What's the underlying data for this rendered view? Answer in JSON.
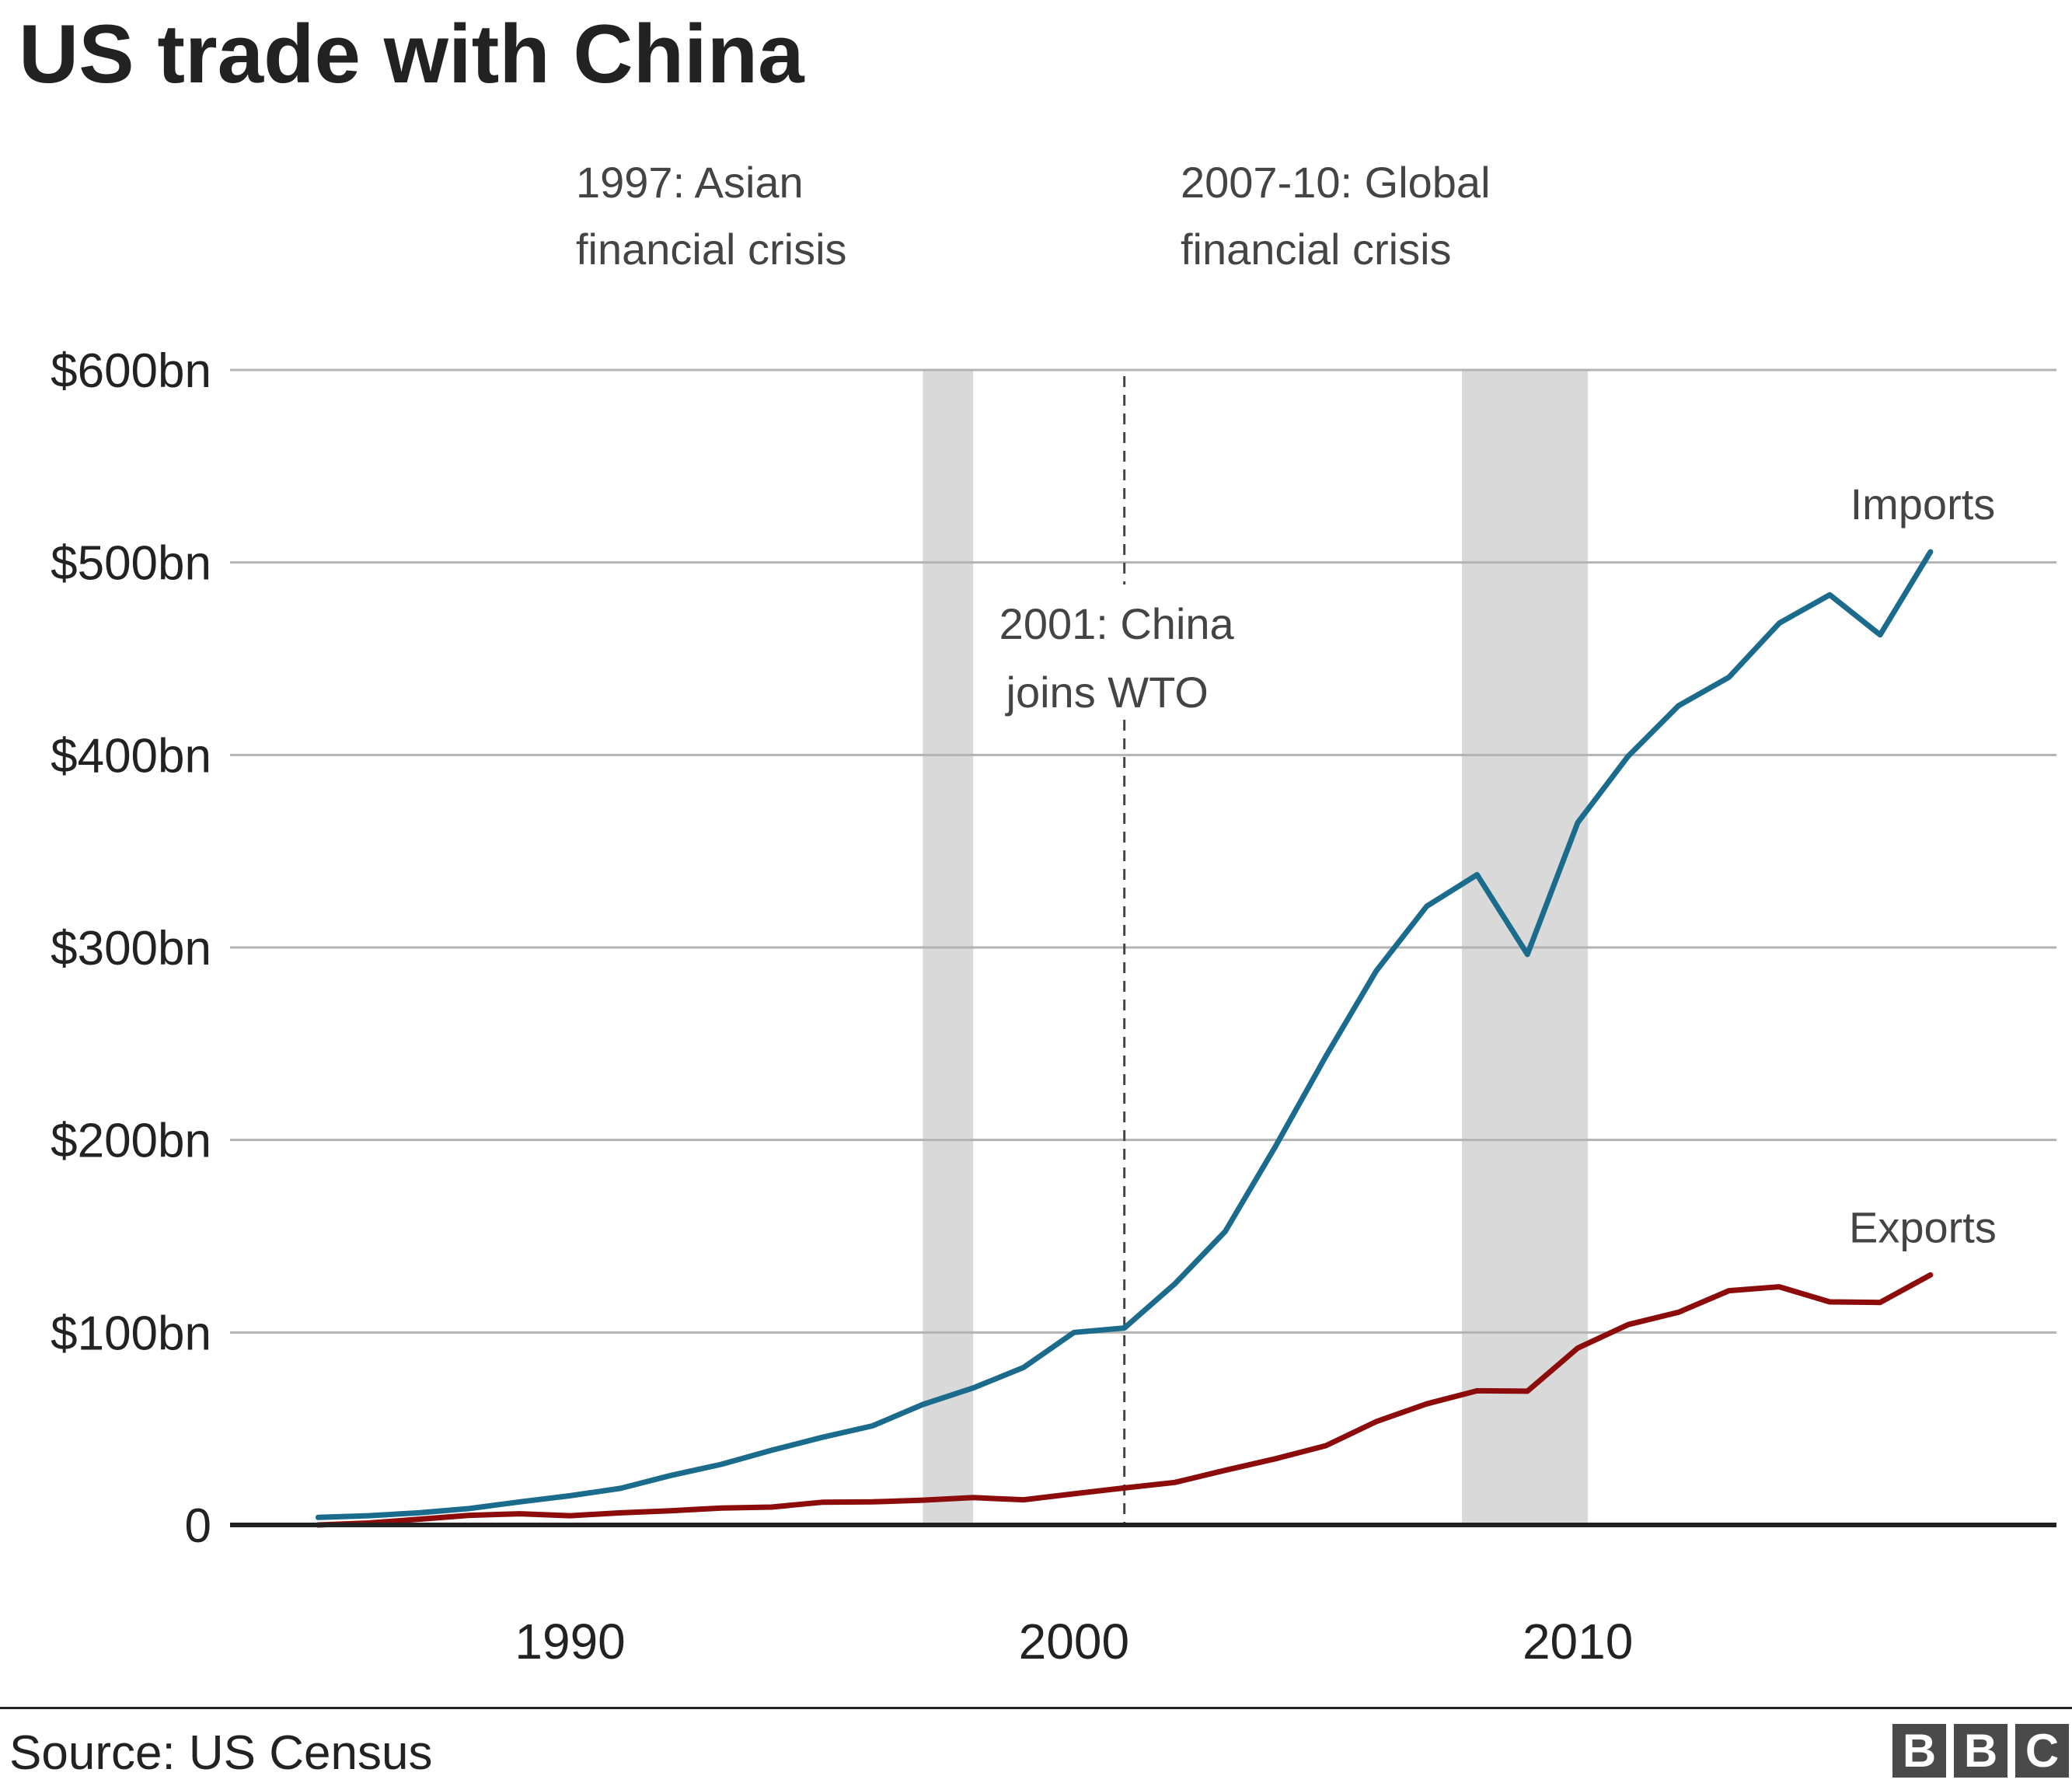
{
  "chart_data": {
    "type": "line",
    "title": "US trade with China",
    "source": "Source: US Census",
    "y_axis": {
      "min": 0,
      "max": 600,
      "ticks": [
        0,
        100,
        200,
        300,
        400,
        500,
        600
      ],
      "tick_labels": [
        "0",
        "$100bn",
        "$200bn",
        "$300bn",
        "$400bn",
        "$500bn",
        "$600bn"
      ]
    },
    "x_axis": {
      "min": 1983.25,
      "max": 2019.5,
      "ticks": [
        1990,
        2000,
        2010
      ],
      "tick_labels": [
        "1990",
        "2000",
        "2010"
      ]
    },
    "grid": true,
    "shaded_periods": [
      {
        "start": 1997,
        "end": 1998,
        "label_lines": [
          "1997: Asian",
          "financial crisis"
        ]
      },
      {
        "start": 2007.7,
        "end": 2010.2,
        "label_lines": [
          "2007-10: Global",
          "financial crisis"
        ]
      }
    ],
    "events": [
      {
        "x": 2001,
        "label_lines": [
          "2001: China",
          "joins WTO"
        ]
      }
    ],
    "series": [
      {
        "name": "Imports",
        "color": "#1b6b8c",
        "x": [
          1985,
          1986,
          1987,
          1988,
          1989,
          1990,
          1991,
          1992,
          1993,
          1994,
          1995,
          1996,
          1997,
          1998,
          1999,
          2000,
          2001,
          2002,
          2003,
          2004,
          2005,
          2006,
          2007,
          2008,
          2009,
          2010,
          2011,
          2012,
          2013,
          2014,
          2015,
          2016,
          2017
        ],
        "values": [
          3.9,
          4.8,
          6.3,
          8.5,
          12.0,
          15.2,
          19.0,
          25.7,
          31.5,
          38.8,
          45.5,
          51.5,
          62.6,
          71.2,
          81.8,
          100.0,
          102.3,
          125.2,
          152.4,
          196.7,
          243.5,
          287.8,
          321.4,
          337.8,
          296.4,
          364.9,
          399.4,
          425.6,
          440.4,
          468.5,
          483.2,
          462.4,
          505.5
        ]
      },
      {
        "name": "Exports",
        "color": "#8c0c0c",
        "x": [
          1985,
          1986,
          1987,
          1988,
          1989,
          1990,
          1991,
          1992,
          1993,
          1994,
          1995,
          1996,
          1997,
          1998,
          1999,
          2000,
          2001,
          2002,
          2003,
          2004,
          2005,
          2006,
          2007,
          2008,
          2009,
          2010,
          2011,
          2012,
          2013,
          2014,
          2015,
          2016,
          2017
        ],
        "values": [
          0,
          1.0,
          3.0,
          5.0,
          5.8,
          4.8,
          6.3,
          7.4,
          8.8,
          9.3,
          11.8,
          12.0,
          12.9,
          14.2,
          13.1,
          16.2,
          19.2,
          22.1,
          28.4,
          34.4,
          41.2,
          53.7,
          62.9,
          69.7,
          69.5,
          91.9,
          104.1,
          110.5,
          121.7,
          123.7,
          115.9,
          115.6,
          129.9
        ]
      }
    ]
  },
  "brand": {
    "letters": [
      "B",
      "B",
      "C"
    ]
  }
}
